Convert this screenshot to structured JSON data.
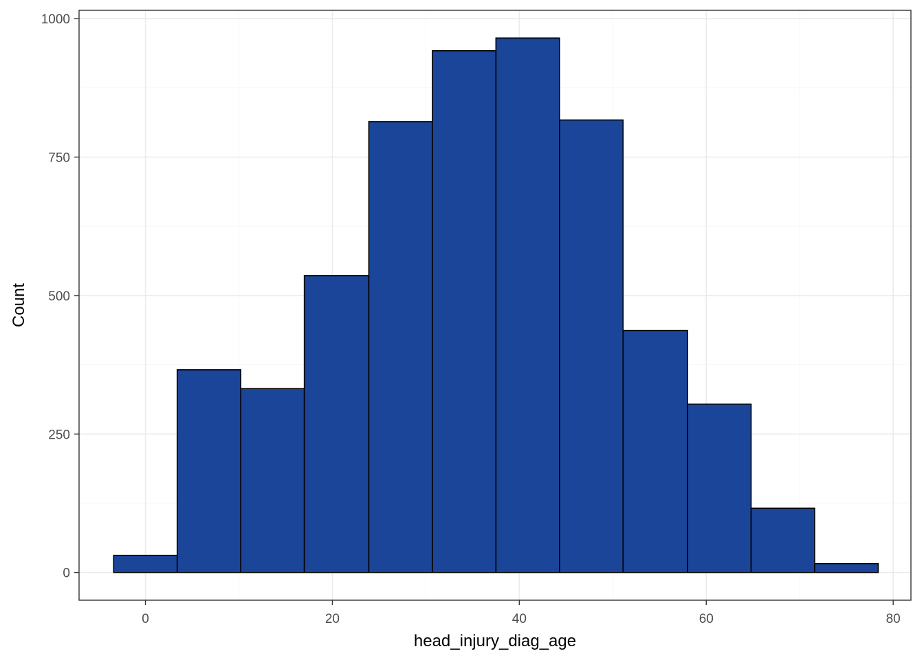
{
  "chart_data": {
    "type": "bar",
    "subtype": "histogram",
    "xlabel": "head_injury_diag_age",
    "ylabel": "Count",
    "xlim": [
      -7.1,
      81.9
    ],
    "ylim": [
      -50,
      1015
    ],
    "x_ticks": [
      0,
      20,
      40,
      60,
      80
    ],
    "y_ticks": [
      0,
      250,
      500,
      750,
      1000
    ],
    "x_tick_labels": [
      "0",
      "20",
      "40",
      "60",
      "80"
    ],
    "y_tick_labels": [
      "0",
      "250",
      "500",
      "750",
      "1000"
    ],
    "bins": [
      {
        "x_start": -3.4,
        "x_end": 3.4,
        "count": 31
      },
      {
        "x_start": 3.4,
        "x_end": 10.2,
        "count": 366
      },
      {
        "x_start": 10.2,
        "x_end": 17.0,
        "count": 332
      },
      {
        "x_start": 17.0,
        "x_end": 23.9,
        "count": 536
      },
      {
        "x_start": 23.9,
        "x_end": 30.7,
        "count": 814
      },
      {
        "x_start": 30.7,
        "x_end": 37.5,
        "count": 942
      },
      {
        "x_start": 37.5,
        "x_end": 44.3,
        "count": 965
      },
      {
        "x_start": 44.3,
        "x_end": 51.1,
        "count": 817
      },
      {
        "x_start": 51.1,
        "x_end": 58.0,
        "count": 437
      },
      {
        "x_start": 58.0,
        "x_end": 64.8,
        "count": 304
      },
      {
        "x_start": 64.8,
        "x_end": 71.6,
        "count": 116
      },
      {
        "x_start": 71.6,
        "x_end": 78.4,
        "count": 16
      }
    ],
    "grid": true,
    "legend": "none",
    "colors": {
      "bar_fill": "#1A4599",
      "bar_stroke": "#000000",
      "panel_border": "#333333",
      "grid_major": "#EBEBEB",
      "grid_minor": "#F5F5F5",
      "tick_text": "#4D4D4D",
      "title_text": "#000000"
    }
  }
}
